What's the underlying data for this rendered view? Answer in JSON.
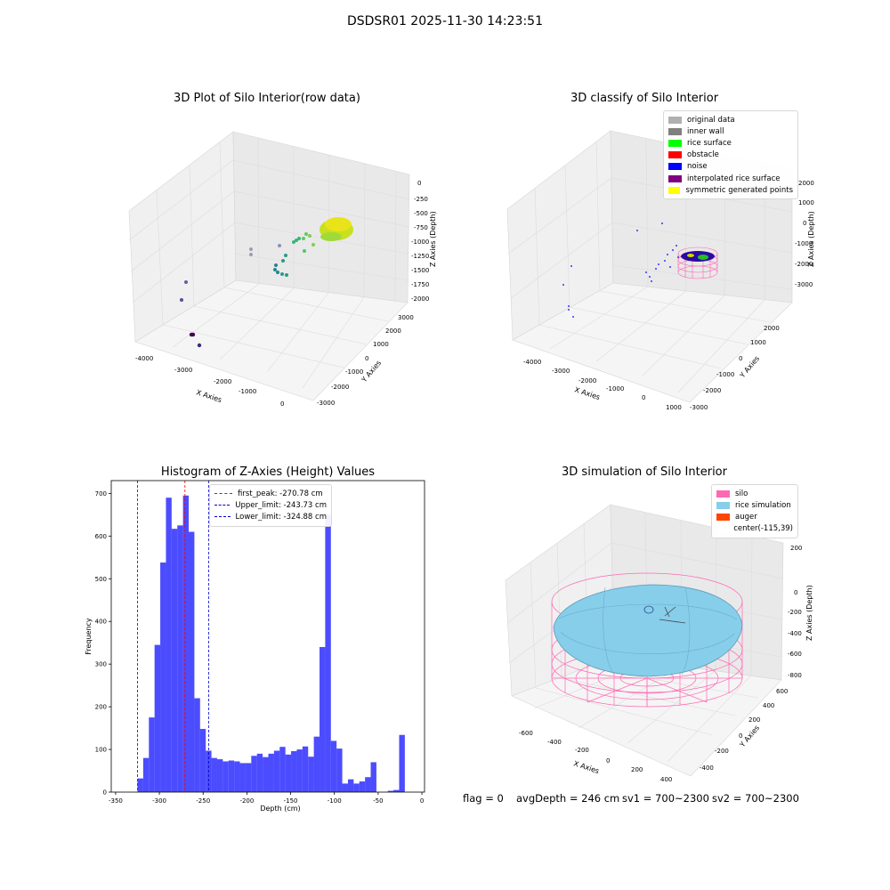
{
  "suptitle": "DSDSR01 2025-11-30 14:23:51",
  "footer": {
    "flag": "flag = 0",
    "avg_depth": "avgDepth = 246 cm",
    "sv1": "sv1 = 700~2300",
    "sv2": "sv2 = 700~2300"
  },
  "chart_data": [
    {
      "type": "scatter",
      "title": "3D Plot of Silo Interior(row data)",
      "xlabel": "X Axies",
      "ylabel": "Y Axies",
      "zlabel": "Z Axies (Depth)",
      "x_ticks": [
        "-4000",
        "-3000",
        "-2000",
        "-1000",
        "0"
      ],
      "y_ticks": [
        "-3000",
        "-2000",
        "-1000",
        "0",
        "1000",
        "2000",
        "3000"
      ],
      "z_ticks": [
        "0",
        "-250",
        "-500",
        "-750",
        "-1000",
        "-1250",
        "-1500",
        "-1750",
        "-2000"
      ],
      "colormap": "viridis"
    },
    {
      "type": "scatter",
      "title": "3D classify of Silo Interior",
      "xlabel": "X Axies",
      "ylabel": "Y Axies",
      "zlabel": "Z Axies (Depth)",
      "x_ticks": [
        "-4000",
        "-3000",
        "-2000",
        "-1000",
        "0",
        "1000"
      ],
      "y_ticks": [
        "-3000",
        "-2000",
        "-1000",
        "0",
        "1000",
        "2000"
      ],
      "z_ticks": [
        "2000",
        "1000",
        "0",
        "-1000",
        "-2000",
        "-3000"
      ],
      "legend": [
        {
          "label": "original data",
          "color": "#b0b0b0"
        },
        {
          "label": "inner wall",
          "color": "#808080"
        },
        {
          "label": "rice surface",
          "color": "#00ff00"
        },
        {
          "label": "obstacle",
          "color": "#ff0000"
        },
        {
          "label": "noise",
          "color": "#0000ff"
        },
        {
          "label": "interpolated rice surface",
          "color": "#800080"
        },
        {
          "label": "symmetric generated points",
          "color": "#ffff00"
        }
      ]
    },
    {
      "type": "bar",
      "title": "Histogram of Z-Axies (Height) Values",
      "xlabel": "Depth (cm)",
      "ylabel": "Frequency",
      "xlim": [
        -355,
        3
      ],
      "ylim": [
        0,
        730
      ],
      "x_ticks": [
        -350,
        -300,
        -250,
        -200,
        -150,
        -100,
        -50,
        0
      ],
      "y_ticks": [
        0,
        100,
        200,
        300,
        400,
        500,
        600,
        700
      ],
      "bin_width": 6.5,
      "bin_start": -325,
      "values": [
        32,
        80,
        175,
        345,
        538,
        690,
        617,
        625,
        695,
        610,
        220,
        148,
        97,
        80,
        77,
        72,
        74,
        72,
        68,
        68,
        85,
        90,
        82,
        90,
        97,
        106,
        88,
        96,
        100,
        107,
        83,
        130,
        340,
        650,
        120,
        102,
        20,
        30,
        20,
        25,
        35,
        70,
        0,
        0,
        3,
        5,
        134
      ],
      "bar_color": "#0000ff",
      "vlines": [
        {
          "label": "first_peak: -270.78 cm",
          "x": -270.78,
          "color": "#ff0000"
        },
        {
          "label": "Upper_limit: -243.73 cm",
          "x": -243.73,
          "color": "#0000cc"
        },
        {
          "label": "Lower_limit: -324.88 cm",
          "x": -324.88,
          "color": "#0000cc"
        }
      ]
    },
    {
      "type": "other",
      "title": "3D simulation of Silo Interior",
      "xlabel": "X Axies",
      "ylabel": "Y Axies",
      "zlabel": "Z Axies (Depth)",
      "x_ticks": [
        "-600",
        "-400",
        "-200",
        "0",
        "200",
        "400"
      ],
      "y_ticks": [
        "-400",
        "-200",
        "0",
        "200",
        "400",
        "600"
      ],
      "z_ticks": [
        "200",
        "0",
        "-200",
        "-400",
        "-600",
        "-800"
      ],
      "legend": [
        {
          "label": "silo",
          "color": "#ff69b4"
        },
        {
          "label": "rice simulation",
          "color": "#87ceeb"
        },
        {
          "label": "auger",
          "color": "#ff4500"
        },
        {
          "label": "center(-115,39)",
          "color": "#ffffff"
        }
      ]
    }
  ]
}
